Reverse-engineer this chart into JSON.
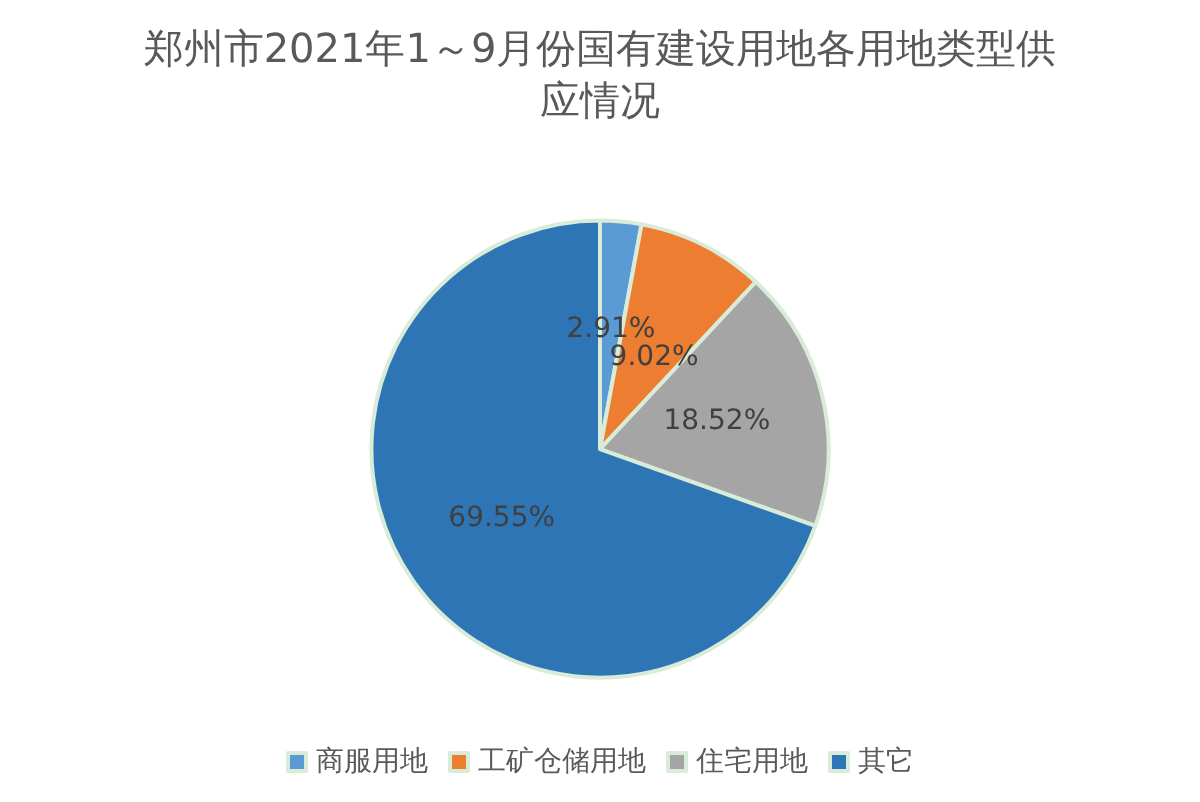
{
  "chart_data": {
    "type": "pie",
    "title": "郑州市2021年1～9月份国有建设用地各用地类型供应情况",
    "categories": [
      "商服用地",
      "工矿仓储用地",
      "住宅用地",
      "其它"
    ],
    "values": [
      2.91,
      9.02,
      18.52,
      69.55
    ],
    "colors": [
      "#5b9bd5",
      "#ed7d31",
      "#a5a5a5",
      "#2e75b6"
    ],
    "value_labels": [
      "2.91%",
      "9.02%",
      "18.52%",
      "69.55%"
    ],
    "legend": "bottom"
  }
}
